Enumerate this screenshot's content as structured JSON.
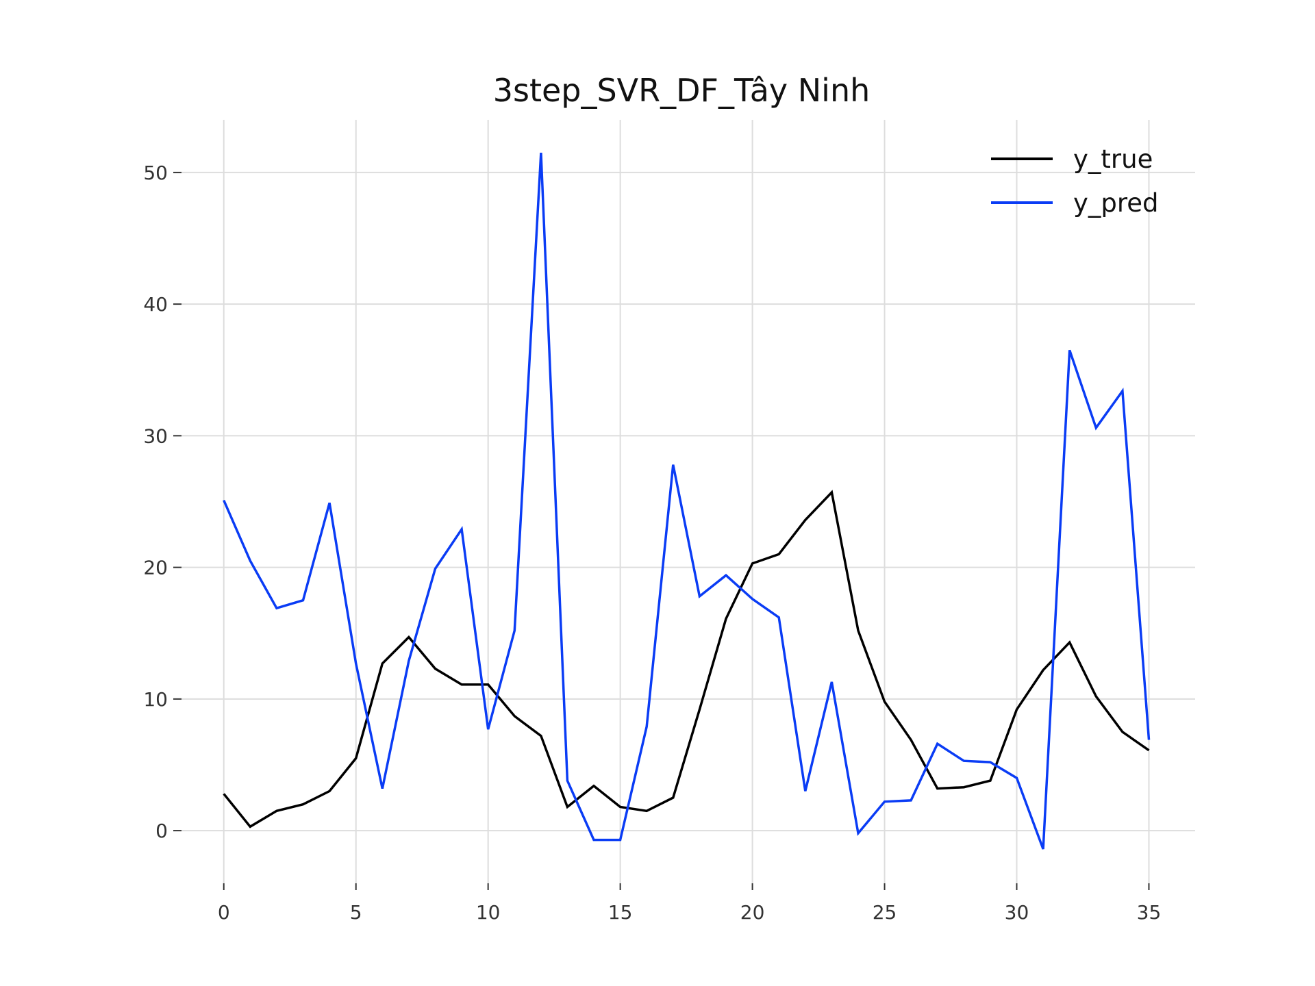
{
  "chart_data": {
    "type": "line",
    "title": "3step_SVR_DF_Tây Ninh",
    "xlabel": "",
    "ylabel": "",
    "xlim": [
      0,
      35
    ],
    "ylim": [
      -4,
      54
    ],
    "xticks": [
      0,
      5,
      10,
      15,
      20,
      25,
      30,
      35
    ],
    "yticks": [
      0,
      10,
      20,
      30,
      40,
      50
    ],
    "grid": true,
    "legend_position": "top-right",
    "x": [
      0,
      1,
      2,
      3,
      4,
      5,
      6,
      7,
      8,
      9,
      10,
      11,
      12,
      13,
      14,
      15,
      16,
      17,
      18,
      19,
      20,
      21,
      22,
      23,
      24,
      25,
      26,
      27,
      28,
      29,
      30,
      31,
      32,
      33,
      34,
      35
    ],
    "series": [
      {
        "name": "y_true",
        "color": "#000000",
        "values": [
          2.8,
          0.3,
          1.5,
          2.0,
          3.0,
          5.5,
          12.7,
          14.7,
          12.3,
          11.1,
          11.1,
          8.7,
          7.2,
          1.8,
          3.4,
          1.8,
          1.5,
          2.5,
          9.2,
          16.1,
          20.3,
          21.0,
          23.6,
          25.7,
          15.2,
          9.8,
          6.9,
          3.2,
          3.3,
          3.8,
          9.2,
          12.2,
          14.3,
          10.2,
          7.5,
          6.1
        ]
      },
      {
        "name": "y_pred",
        "color": "#0a3cf5",
        "values": [
          25.1,
          20.5,
          16.9,
          17.5,
          24.9,
          12.7,
          3.2,
          12.9,
          19.9,
          22.9,
          7.7,
          15.2,
          51.5,
          3.8,
          -0.7,
          -0.7,
          7.9,
          27.8,
          17.8,
          19.4,
          17.6,
          16.2,
          3.0,
          11.3,
          -0.2,
          2.2,
          2.3,
          6.6,
          5.3,
          5.2,
          4.0,
          -1.4,
          36.5,
          30.6,
          33.4,
          6.9
        ]
      }
    ]
  }
}
